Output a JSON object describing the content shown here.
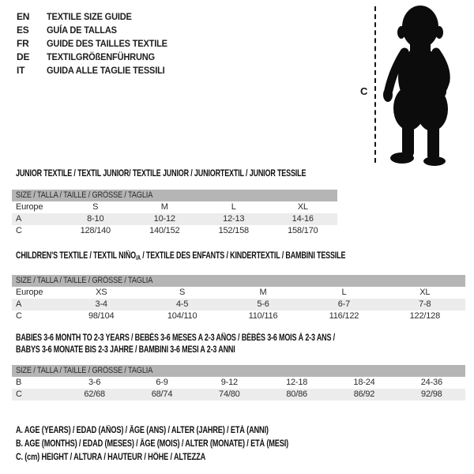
{
  "header": {
    "languages": [
      {
        "code": "EN",
        "label": "TEXTILE SIZE GUIDE"
      },
      {
        "code": "ES",
        "label": "GUÍA DE TALLAS"
      },
      {
        "code": "FR",
        "label": "GUIDE DES TAILLES TEXTILE"
      },
      {
        "code": "DE",
        "label": "TEXTILGRÖßENFÜHRUNG"
      },
      {
        "code": "IT",
        "label": "GUIDA ALLE TAGLIE TESSILI"
      }
    ]
  },
  "figure": {
    "measure_label": "C",
    "silhouette": "standing-toddler-silhouette"
  },
  "tables": [
    {
      "title": "JUNIOR TEXTILE / TEXTIL JUNIOR/ TEXTILE JUNIOR / JUNIORTEXTIL / JUNIOR TESSILE",
      "size_header": "SIZE / TALLA / TAILLE / GRÖSSE / TAGLIA",
      "rows": [
        {
          "label": "Europe",
          "cells": [
            "S",
            "M",
            "L",
            "XL"
          ]
        },
        {
          "label": "A",
          "cells": [
            "8-10",
            "10-12",
            "12-13",
            "14-16"
          ]
        },
        {
          "label": "C",
          "cells": [
            "128/140",
            "140/152",
            "152/158",
            "158/170"
          ]
        }
      ]
    },
    {
      "title_pre": "CHILDREN'S TEXTILE / TEXTIL NIÑO",
      "title_sub": "/A",
      "title_post": " / TEXTILE DES ENFANTS / KINDERTEXTIL / BAMBINI TESSILE",
      "size_header": "SIZE / TALLA / TAILLE / GRÖSSE / TAGLIA",
      "rows": [
        {
          "label": "Europe",
          "cells": [
            "XS",
            "S",
            "M",
            "L",
            "XL"
          ]
        },
        {
          "label": "A",
          "cells": [
            "3-4",
            "4-5",
            "5-6",
            "6-7",
            "7-8"
          ]
        },
        {
          "label": "C",
          "cells": [
            "98/104",
            "104/110",
            "110/116",
            "116/122",
            "122/128"
          ]
        }
      ]
    },
    {
      "title_line1": "BABIES 3-6 MONTH TO 2-3 YEARS / BEBÉS 3-6 MESES A 2-3 AÑOS / BÉBÉS 3-6 MOIS À 2-3 ANS /",
      "title_line2": "BABYS 3-6 MONATE BIS 2-3 JAHRE / BAMBINI 3-6 MESI A 2-3 ANNI",
      "size_header": "SIZE / TALLA / TAILLE / GRÖSSE / TAGLIA",
      "rows": [
        {
          "label": "B",
          "cells": [
            "3-6",
            "6-9",
            "9-12",
            "12-18",
            "18-24",
            "24-36"
          ]
        },
        {
          "label": "C",
          "cells": [
            "62/68",
            "68/74",
            "74/80",
            "80/86",
            "86/92",
            "92/98"
          ]
        }
      ]
    }
  ],
  "legend": [
    "A. AGE (YEARS) / EDAD (AÑOS) / ÂGE (ANS) / ALTER (JAHRE) / ETÀ (ANNI)",
    "B. AGE (MONTHS) / EDAD (MESES) / ÂGE (MOIS) / ALTER (MONATE) / ETÀ (MESI)",
    "C. (cm) HEIGHT / ALTURA / HAUTEUR / HÖHE / ALTEZZA"
  ],
  "colors": {
    "header_bar": "#b5b5b5",
    "row_stripe": "#ececec",
    "text": "#2b2b2b",
    "silhouette": "#0c0c0c"
  }
}
